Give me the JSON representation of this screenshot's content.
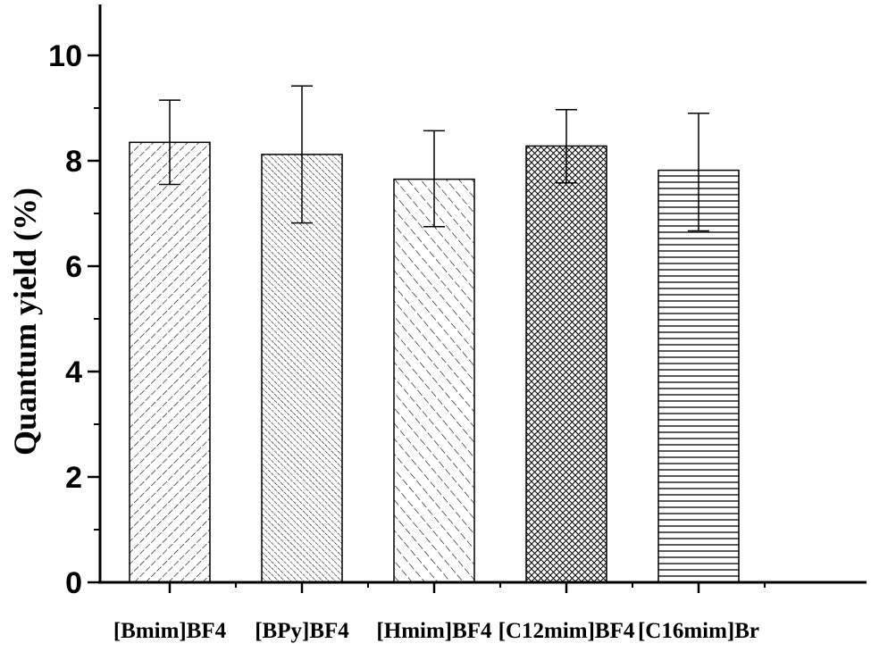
{
  "chart_data": {
    "type": "bar",
    "categories": [
      "[Bmim]BF4",
      "[BPy]BF4",
      "[Hmim]BF4",
      "[C12mim]BF4",
      "[C16mim]Br"
    ],
    "values": [
      8.35,
      8.12,
      7.65,
      8.28,
      7.82
    ],
    "error_upper": [
      9.15,
      9.42,
      8.57,
      8.97,
      8.9
    ],
    "error_lower": [
      7.55,
      6.82,
      6.75,
      7.58,
      6.67
    ],
    "ylabel": "Quantum yield (%)",
    "xlabel": "",
    "ylim": [
      0,
      11
    ],
    "yticks": [
      0,
      2,
      4,
      6,
      8,
      10
    ],
    "grid": false,
    "patterns": [
      "sparse-forward-dash",
      "dense-backward-hatch",
      "sparse-backward-dash",
      "cross-hatch",
      "horizontal-lines"
    ]
  }
}
